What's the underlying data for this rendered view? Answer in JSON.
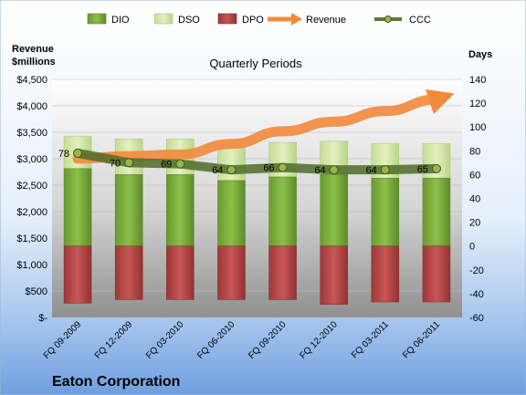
{
  "chart_data": {
    "type": "bar",
    "title": "Quarterly Periods",
    "company": "Eaton Corporation",
    "left_axis_label": [
      "Revenue",
      "$millions"
    ],
    "right_axis_label": "Days",
    "categories": [
      "FQ 09-2009",
      "FQ 12-2009",
      "FQ 03-2010",
      "FQ 06-2010",
      "FQ 09-2010",
      "FQ 12-2010",
      "FQ 03-2011",
      "FQ 06-2011"
    ],
    "left_ticks": [
      "$-",
      "$500",
      "$1,000",
      "$1,500",
      "$2,000",
      "$2,500",
      "$3,000",
      "$3,500",
      "$4,000",
      "$4,500"
    ],
    "right_ticks": [
      "-60",
      "-40",
      "-20",
      "0",
      "20",
      "40",
      "60",
      "80",
      "100",
      "120",
      "140"
    ],
    "left_ylim": [
      0,
      4500
    ],
    "right_ylim": [
      -60,
      140
    ],
    "legend": [
      "DIO",
      "DSO",
      "DPO",
      "Revenue",
      "CCC"
    ],
    "legend_position": "top",
    "colors": {
      "DIO": "#7aab3c",
      "DSO": "#d6e8a8",
      "DPO": "#b84848",
      "Revenue": "#f28a3c",
      "CCC": "#5c7a2e"
    },
    "series": {
      "DIO": [
        65,
        60,
        60,
        55,
        58,
        60,
        57,
        57
      ],
      "DSO": [
        27,
        30,
        30,
        29,
        29,
        28,
        29,
        29
      ],
      "DPO": [
        -48,
        -45,
        -45,
        -45,
        -45,
        -49,
        -47,
        -47
      ],
      "Revenue": [
        3000,
        3050,
        3080,
        3280,
        3520,
        3700,
        3900,
        4120
      ],
      "CCC": [
        78,
        70,
        69,
        64,
        66,
        64,
        64,
        65
      ]
    },
    "ccc_labels": [
      "78",
      "70",
      "69",
      "64",
      "66",
      "64",
      "64",
      "65"
    ],
    "grid": true
  }
}
